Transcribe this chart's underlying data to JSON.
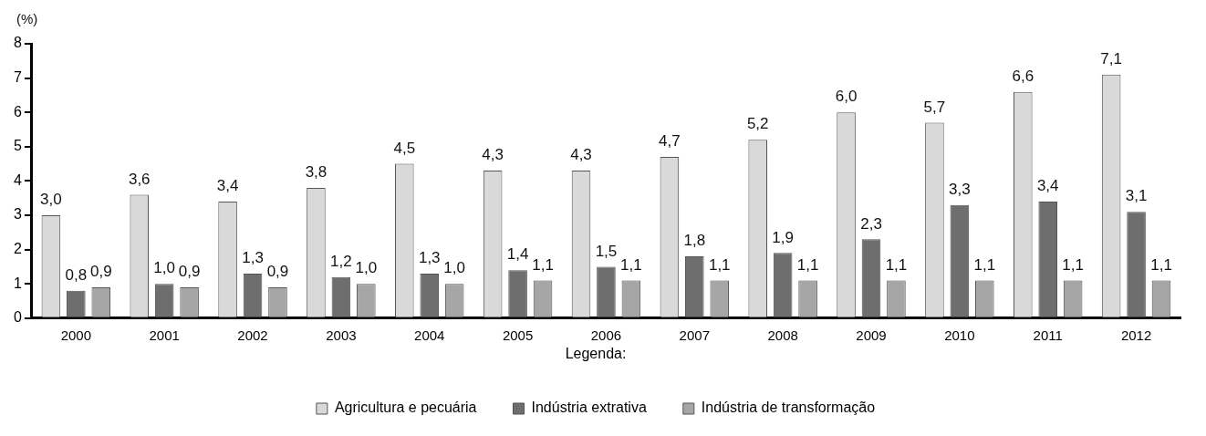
{
  "chart_data": {
    "type": "bar",
    "ylabel": "(%)",
    "legend_title": "Legenda:",
    "legend": "bottom",
    "grid": false,
    "categories": [
      "2000",
      "2001",
      "2002",
      "2003",
      "2004",
      "2005",
      "2006",
      "2007",
      "2008",
      "2009",
      "2010",
      "2011",
      "2012"
    ],
    "ylim": [
      0,
      8
    ],
    "yticks": [
      0,
      1,
      2,
      3,
      4,
      5,
      6,
      7,
      8
    ],
    "series": [
      {
        "name": "Agricultura e pecuária",
        "color": "#d9d9d9",
        "values": [
          3.0,
          3.6,
          3.4,
          3.8,
          4.5,
          4.3,
          4.3,
          4.7,
          5.2,
          6.0,
          5.7,
          6.6,
          7.1
        ],
        "value_labels": [
          "3,0",
          "3,6",
          "3,4",
          "3,8",
          "4,5",
          "4,3",
          "4,3",
          "4,7",
          "5,2",
          "6,0",
          "5,7",
          "6,6",
          "7,1"
        ]
      },
      {
        "name": "Indústria extrativa",
        "color": "#6e6e6e",
        "values": [
          0.8,
          1.0,
          1.3,
          1.2,
          1.3,
          1.4,
          1.5,
          1.8,
          1.9,
          2.3,
          3.3,
          3.4,
          3.1
        ],
        "value_labels": [
          "0,8",
          "1,0",
          "1,3",
          "1,2",
          "1,3",
          "1,4",
          "1,5",
          "1,8",
          "1,9",
          "2,3",
          "3,3",
          "3,4",
          "3,1"
        ]
      },
      {
        "name": "Indústria de transformação",
        "color": "#a6a6a6",
        "values": [
          0.9,
          0.9,
          0.9,
          1.0,
          1.0,
          1.1,
          1.1,
          1.1,
          1.1,
          1.1,
          1.1,
          1.1,
          1.1
        ],
        "value_labels": [
          "0,9",
          "0,9",
          "0,9",
          "1,0",
          "1,0",
          "1,1",
          "1,1",
          "1,1",
          "1,1",
          "1,1",
          "1,1",
          "1,1",
          "1,1"
        ]
      }
    ]
  }
}
